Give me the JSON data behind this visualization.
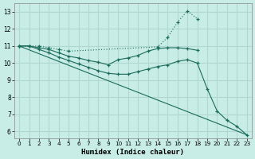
{
  "xlabel": "Humidex (Indice chaleur)",
  "bg_color": "#c8ece6",
  "grid_color": "#b0d8d0",
  "line_color": "#1a6b5a",
  "xlim": [
    -0.5,
    23.5
  ],
  "ylim": [
    5.6,
    13.5
  ],
  "yticks": [
    6,
    7,
    8,
    9,
    10,
    11,
    12,
    13
  ],
  "xticks": [
    0,
    1,
    2,
    3,
    4,
    5,
    6,
    7,
    8,
    9,
    10,
    11,
    12,
    13,
    14,
    15,
    16,
    17,
    18,
    19,
    20,
    21,
    22,
    23
  ],
  "lines": [
    {
      "x": [
        0,
        1,
        2,
        3,
        4,
        5,
        14,
        15,
        16,
        17,
        18
      ],
      "y": [
        11.0,
        11.0,
        11.0,
        10.9,
        10.8,
        10.7,
        10.95,
        11.5,
        12.4,
        13.05,
        12.6
      ],
      "style": "dotted",
      "marker": "+"
    },
    {
      "x": [
        0,
        1,
        2,
        3,
        4,
        5,
        6,
        7,
        8,
        9,
        10,
        11,
        12,
        13,
        14,
        15,
        16,
        17,
        18
      ],
      "y": [
        11.0,
        11.0,
        10.9,
        10.8,
        10.6,
        10.4,
        10.3,
        10.15,
        10.05,
        9.9,
        10.2,
        10.3,
        10.45,
        10.7,
        10.85,
        10.9,
        10.9,
        10.85,
        10.75
      ],
      "style": "solid",
      "marker": "+"
    },
    {
      "x": [
        0,
        1,
        2,
        3,
        4,
        5,
        6,
        7,
        8,
        9,
        10,
        11,
        12,
        13,
        14,
        15,
        16,
        17,
        18,
        19,
        20,
        21,
        22,
        23
      ],
      "y": [
        11.0,
        11.0,
        10.8,
        10.6,
        10.35,
        10.15,
        9.95,
        9.75,
        9.55,
        9.4,
        9.35,
        9.35,
        9.5,
        9.65,
        9.8,
        9.9,
        10.1,
        10.2,
        10.0,
        8.5,
        7.2,
        6.65,
        6.3,
        5.8
      ],
      "style": "solid",
      "marker": "+"
    },
    {
      "x": [
        0,
        23
      ],
      "y": [
        11.0,
        5.8
      ],
      "style": "solid",
      "marker": null
    }
  ]
}
